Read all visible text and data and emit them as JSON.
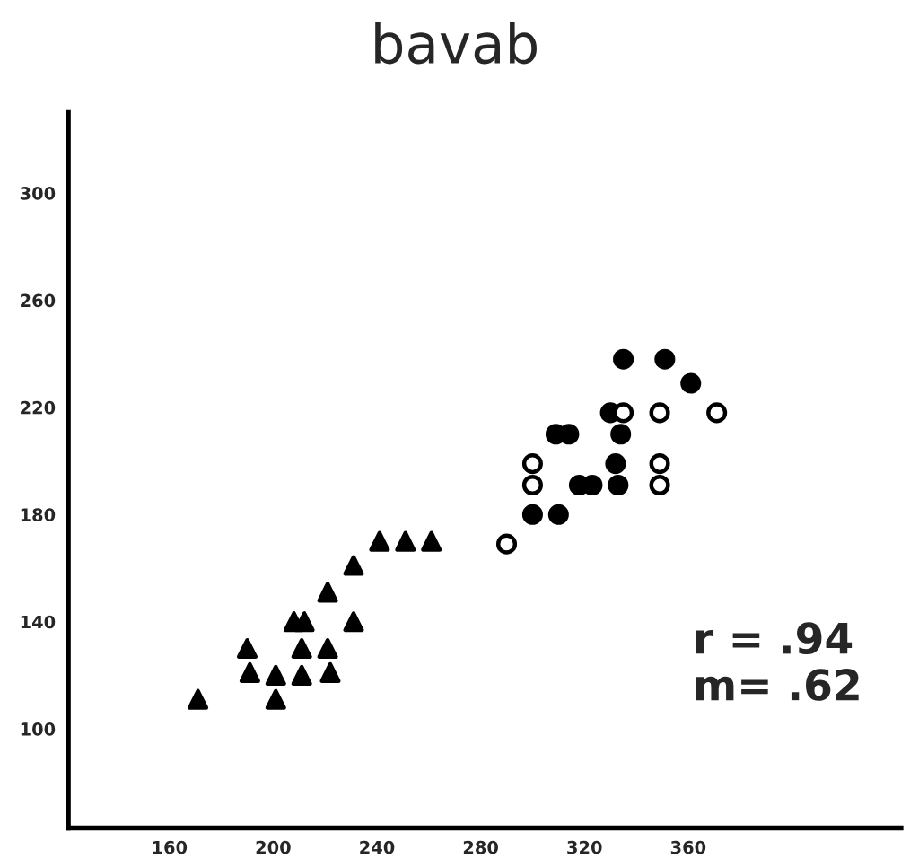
{
  "chart_data": {
    "type": "scatter",
    "title": "bavab",
    "series": [
      {
        "color": "#000000",
        "marker": "triangle",
        "x": [
          171,
          190,
          191,
          201,
          201,
          208,
          212,
          211,
          211,
          221,
          222,
          221,
          231,
          231,
          241,
          251,
          261
        ],
        "values": [
          111,
          130,
          121,
          120,
          111,
          140,
          140,
          130,
          120,
          130,
          121,
          151,
          161,
          140,
          170,
          170,
          170
        ]
      },
      {
        "color": "#000000",
        "marker": "circle",
        "x": [
          335,
          351,
          361,
          330,
          309,
          314,
          334,
          332,
          318,
          323,
          333,
          300,
          310
        ],
        "values": [
          238,
          238,
          229,
          218,
          210,
          210,
          210,
          199,
          191,
          191,
          191,
          180,
          180
        ]
      },
      {
        "color": "#ffffff",
        "marker": "circle",
        "x": [
          335,
          349,
          371,
          300,
          349,
          300,
          349,
          290
        ],
        "values": [
          218,
          218,
          218,
          199,
          199,
          191,
          191,
          169
        ]
      }
    ],
    "xlim": [
      121,
      442
    ],
    "xticks": [
      160,
      200,
      240,
      280,
      320,
      360
    ],
    "ylim": [
      63,
      330
    ],
    "yticks": [
      100,
      140,
      180,
      220,
      260,
      300
    ],
    "annotations": [
      "r = .94",
      "m= .62"
    ],
    "grid": false,
    "legend": false
  }
}
